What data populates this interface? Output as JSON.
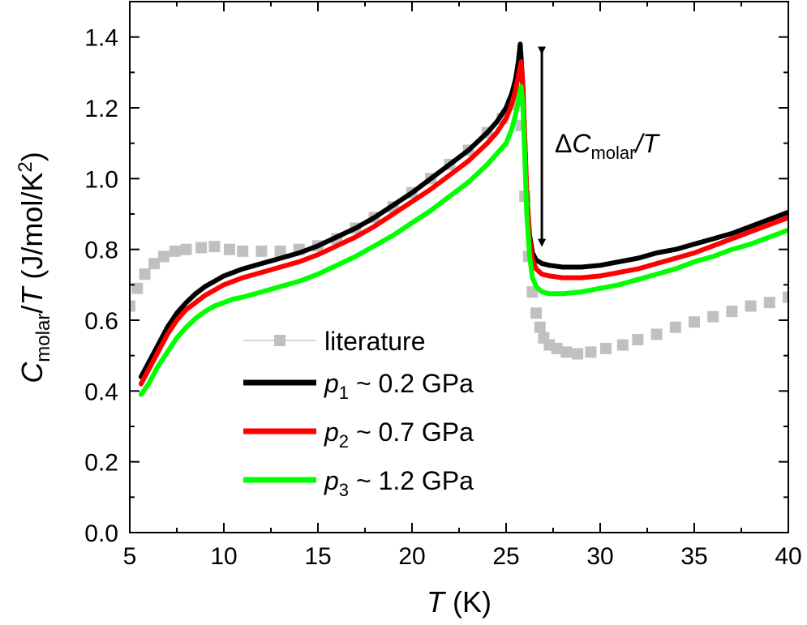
{
  "chart_data": {
    "type": "line",
    "title": "",
    "xlabel": {
      "main": "T",
      "unit": "(K)"
    },
    "ylabel": {
      "main": "C",
      "sub": "molar",
      "slash": "/",
      "main2": "T",
      "unit": "(J/mol/K",
      "sup": "2",
      "close": ")"
    },
    "xlim": [
      5,
      40
    ],
    "ylim": [
      0,
      1.5
    ],
    "xticks": [
      5,
      10,
      15,
      20,
      25,
      30,
      35,
      40
    ],
    "yticks": [
      0.0,
      0.2,
      0.4,
      0.6,
      0.8,
      1.0,
      1.2,
      1.4
    ],
    "xtick_labels": [
      "5",
      "10",
      "15",
      "20",
      "25",
      "30",
      "35",
      "40"
    ],
    "ytick_labels": [
      "0.0",
      "0.2",
      "0.4",
      "0.6",
      "0.8",
      "1.0",
      "1.2",
      "1.4"
    ],
    "grid": false,
    "legend_position": "lower-left",
    "annotation": {
      "delta": "Δ",
      "main": "C",
      "sub": "molar",
      "tail": "/T",
      "arrow_x": 26.9,
      "arrow_y_top": 1.38,
      "arrow_y_bottom": 0.8
    },
    "series": [
      {
        "name": "literature",
        "color": "#c0c0c0",
        "style": "markers",
        "x": [
          5.0,
          5.4,
          5.8,
          6.3,
          6.8,
          7.4,
          8.0,
          8.8,
          9.5,
          10.3,
          11.0,
          12.0,
          13.0,
          14.0,
          15.0,
          16.0,
          17.0,
          18.0,
          19.0,
          20.0,
          21.0,
          22.0,
          23.0,
          24.0,
          24.8,
          25.3,
          25.6,
          25.8,
          26.0,
          26.2,
          26.4,
          26.6,
          26.8,
          27.0,
          27.3,
          27.7,
          28.2,
          28.8,
          29.5,
          30.3,
          31.2,
          32.0,
          33.0,
          34.0,
          35.0,
          36.0,
          37.0,
          38.0,
          39.0,
          40.0
        ],
        "y": [
          0.64,
          0.69,
          0.73,
          0.76,
          0.78,
          0.795,
          0.8,
          0.805,
          0.808,
          0.8,
          0.795,
          0.795,
          0.795,
          0.8,
          0.81,
          0.83,
          0.86,
          0.89,
          0.92,
          0.96,
          1.0,
          1.04,
          1.08,
          1.13,
          1.17,
          1.21,
          1.22,
          1.15,
          0.95,
          0.78,
          0.68,
          0.62,
          0.58,
          0.55,
          0.53,
          0.52,
          0.51,
          0.505,
          0.51,
          0.52,
          0.53,
          0.545,
          0.56,
          0.58,
          0.595,
          0.61,
          0.625,
          0.64,
          0.65,
          0.665
        ]
      },
      {
        "name_main": "p",
        "name_sub": "1",
        "name_rest": " ~ 0.2 GPa",
        "color": "#000000",
        "style": "line",
        "x": [
          5.6,
          6.0,
          6.5,
          7.0,
          7.5,
          8.0,
          8.5,
          9.0,
          9.5,
          10.0,
          10.5,
          11.0,
          12.0,
          13.0,
          14.0,
          15.0,
          16.0,
          17.0,
          18.0,
          19.0,
          20.0,
          21.0,
          22.0,
          23.0,
          24.0,
          24.5,
          25.0,
          25.3,
          25.5,
          25.65,
          25.75,
          25.85,
          26.0,
          26.1,
          26.25,
          26.4,
          26.6,
          26.9,
          27.3,
          28.0,
          29.0,
          30.0,
          31.0,
          32.0,
          33.0,
          34.0,
          35.0,
          36.0,
          37.0,
          38.0,
          39.0,
          40.0
        ],
        "y": [
          0.44,
          0.48,
          0.53,
          0.58,
          0.62,
          0.65,
          0.675,
          0.695,
          0.71,
          0.725,
          0.735,
          0.745,
          0.76,
          0.775,
          0.79,
          0.81,
          0.835,
          0.86,
          0.89,
          0.925,
          0.96,
          1.0,
          1.04,
          1.08,
          1.13,
          1.16,
          1.2,
          1.24,
          1.28,
          1.33,
          1.38,
          1.3,
          1.1,
          0.95,
          0.84,
          0.79,
          0.77,
          0.76,
          0.755,
          0.75,
          0.75,
          0.755,
          0.765,
          0.775,
          0.79,
          0.8,
          0.815,
          0.83,
          0.845,
          0.865,
          0.885,
          0.905
        ]
      },
      {
        "name_main": "p",
        "name_sub": "2",
        "name_rest": " ~ 0.7 GPa",
        "color": "#ff0000",
        "style": "line",
        "x": [
          5.6,
          6.0,
          6.5,
          7.0,
          7.5,
          8.0,
          8.5,
          9.0,
          9.5,
          10.0,
          10.5,
          11.0,
          12.0,
          13.0,
          14.0,
          15.0,
          16.0,
          17.0,
          18.0,
          19.0,
          20.0,
          21.0,
          22.0,
          23.0,
          24.0,
          24.5,
          25.0,
          25.3,
          25.5,
          25.65,
          25.8,
          25.9,
          26.0,
          26.1,
          26.25,
          26.4,
          26.6,
          26.9,
          27.3,
          28.0,
          29.0,
          30.0,
          31.0,
          32.0,
          33.0,
          34.0,
          35.0,
          36.0,
          37.0,
          38.0,
          39.0,
          40.0
        ],
        "y": [
          0.42,
          0.46,
          0.51,
          0.56,
          0.6,
          0.63,
          0.65,
          0.67,
          0.685,
          0.7,
          0.71,
          0.72,
          0.735,
          0.75,
          0.765,
          0.785,
          0.81,
          0.835,
          0.865,
          0.9,
          0.935,
          0.97,
          1.01,
          1.05,
          1.1,
          1.13,
          1.17,
          1.21,
          1.25,
          1.29,
          1.33,
          1.26,
          1.1,
          0.96,
          0.83,
          0.77,
          0.745,
          0.73,
          0.725,
          0.72,
          0.72,
          0.725,
          0.735,
          0.745,
          0.76,
          0.775,
          0.79,
          0.81,
          0.83,
          0.85,
          0.87,
          0.89
        ]
      },
      {
        "name_main": "p",
        "name_sub": "3",
        "name_rest": " ~ 1.2 GPa",
        "color": "#00ff00",
        "style": "line",
        "x": [
          5.6,
          6.0,
          6.5,
          7.0,
          7.5,
          8.0,
          8.5,
          9.0,
          9.5,
          10.0,
          10.5,
          11.0,
          12.0,
          13.0,
          14.0,
          15.0,
          16.0,
          17.0,
          18.0,
          19.0,
          20.0,
          21.0,
          22.0,
          23.0,
          24.0,
          24.5,
          25.0,
          25.3,
          25.5,
          25.65,
          25.8,
          25.9,
          26.0,
          26.1,
          26.25,
          26.4,
          26.6,
          26.9,
          27.3,
          28.0,
          29.0,
          30.0,
          31.0,
          32.0,
          33.0,
          34.0,
          35.0,
          36.0,
          37.0,
          38.0,
          39.0,
          40.0
        ],
        "y": [
          0.39,
          0.42,
          0.47,
          0.51,
          0.55,
          0.58,
          0.605,
          0.625,
          0.64,
          0.65,
          0.66,
          0.665,
          0.68,
          0.695,
          0.71,
          0.73,
          0.755,
          0.78,
          0.81,
          0.84,
          0.875,
          0.91,
          0.95,
          0.99,
          1.04,
          1.07,
          1.1,
          1.14,
          1.18,
          1.22,
          1.26,
          1.2,
          1.05,
          0.9,
          0.78,
          0.72,
          0.695,
          0.68,
          0.675,
          0.675,
          0.68,
          0.69,
          0.7,
          0.715,
          0.73,
          0.745,
          0.765,
          0.78,
          0.8,
          0.815,
          0.835,
          0.855
        ]
      }
    ]
  }
}
